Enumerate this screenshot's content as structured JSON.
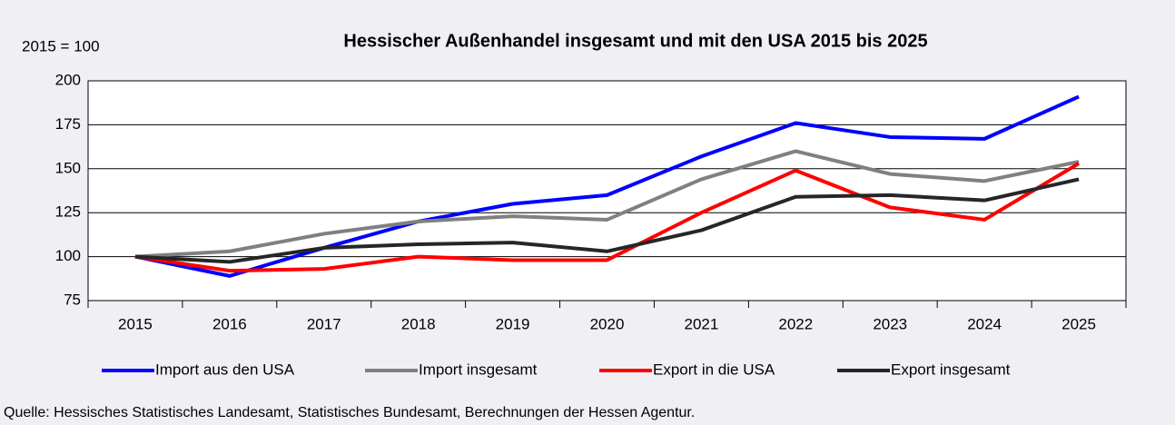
{
  "chart_data": {
    "type": "line",
    "title": "Hessischer Außenhandel insgesamt und mit den USA 2015 bis 2025",
    "y_label": "2015 = 100",
    "source": "Quelle: Hessisches Statistisches Landesamt, Statistisches Bundesamt, Berechnungen der Hessen Agentur.",
    "categories": [
      "2015",
      "2016",
      "2017",
      "2018",
      "2019",
      "2020",
      "2021",
      "2022",
      "2023",
      "2024",
      "2025"
    ],
    "series": [
      {
        "name": "Import aus den USA",
        "color": "#0000ff",
        "values": [
          100,
          89,
          105,
          120,
          130,
          135,
          157,
          176,
          168,
          167,
          191
        ]
      },
      {
        "name": "Import insgesamt",
        "color": "#808080",
        "values": [
          100,
          103,
          113,
          120,
          123,
          121,
          144,
          160,
          147,
          143,
          154
        ]
      },
      {
        "name": "Export in die USA",
        "color": "#ff0000",
        "values": [
          100,
          92,
          93,
          100,
          98,
          98,
          125,
          149,
          128,
          121,
          153
        ]
      },
      {
        "name": "Export insgesamt",
        "color": "#262626",
        "values": [
          100,
          97,
          105,
          107,
          108,
          103,
          115,
          134,
          135,
          132,
          144
        ]
      }
    ],
    "ylim": [
      75,
      200
    ],
    "yticks": [
      75,
      100,
      125,
      150,
      175,
      200
    ],
    "grid": true
  }
}
